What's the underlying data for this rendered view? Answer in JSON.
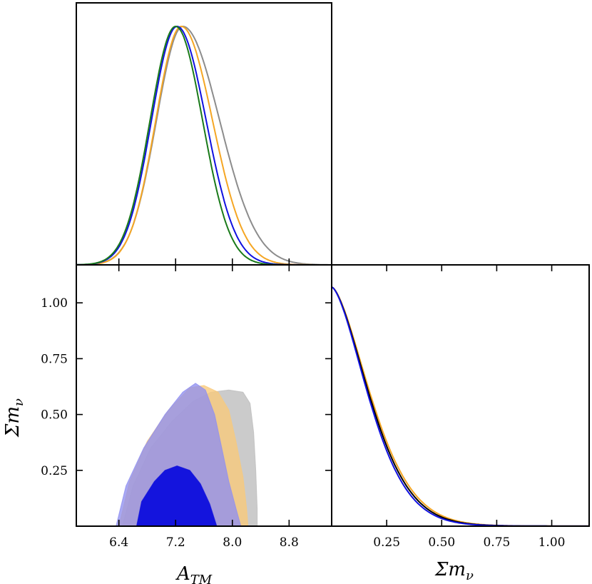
{
  "colors": {
    "gray": "#8c8c8c",
    "orange": "#f5a623",
    "blue": "#1010e0",
    "green": "#1a7a1a",
    "black": "#000000",
    "fill_gray": "#bdbdbd",
    "fill_orange": "#f9c97a",
    "fill_blue_light": "#8f8ff0",
    "fill_blue_dark": "#1414dd"
  },
  "chart_data": [
    {
      "type": "line",
      "panel": "A_TM marginal",
      "x_range": [
        5.8,
        9.4
      ],
      "x_ticks": [
        6.4,
        7.2,
        8.0,
        8.8
      ],
      "series": [
        {
          "color": "gray",
          "mean": 7.3,
          "sigma_left": 0.37,
          "sigma_right": 0.52
        },
        {
          "color": "orange",
          "mean": 7.28,
          "sigma_left": 0.36,
          "sigma_right": 0.44
        },
        {
          "color": "blue",
          "mean": 7.22,
          "sigma_left": 0.36,
          "sigma_right": 0.41
        },
        {
          "color": "green",
          "mean": 7.2,
          "sigma_left": 0.36,
          "sigma_right": 0.38
        }
      ]
    },
    {
      "type": "area",
      "panel": "A_TM vs Sum m_nu",
      "x_range": [
        5.8,
        9.4
      ],
      "y_range": [
        0.0,
        1.17
      ],
      "x_ticks": [
        6.4,
        7.2,
        8.0,
        8.8
      ],
      "y_ticks": [
        0.25,
        0.5,
        0.75,
        1.0
      ],
      "y_tick_labels": [
        "0.25",
        "0.50",
        "0.75",
        "1.00"
      ],
      "contours": [
        {
          "color": "fill_gray",
          "level": "95%",
          "points": [
            [
              6.45,
              0.0
            ],
            [
              6.6,
              0.18
            ],
            [
              6.85,
              0.35
            ],
            [
              7.15,
              0.47
            ],
            [
              7.45,
              0.56
            ],
            [
              7.7,
              0.6
            ],
            [
              7.95,
              0.61
            ],
            [
              8.15,
              0.6
            ],
            [
              8.25,
              0.55
            ],
            [
              8.3,
              0.42
            ],
            [
              8.33,
              0.25
            ],
            [
              8.35,
              0.08
            ],
            [
              8.35,
              0.0
            ]
          ]
        },
        {
          "color": "fill_orange",
          "level": "95%",
          "points": [
            [
              6.4,
              0.0
            ],
            [
              6.55,
              0.2
            ],
            [
              6.8,
              0.38
            ],
            [
              7.1,
              0.52
            ],
            [
              7.4,
              0.62
            ],
            [
              7.6,
              0.63
            ],
            [
              7.8,
              0.6
            ],
            [
              7.95,
              0.52
            ],
            [
              8.05,
              0.38
            ],
            [
              8.15,
              0.22
            ],
            [
              8.2,
              0.08
            ],
            [
              8.22,
              0.0
            ]
          ]
        },
        {
          "color": "fill_blue_light",
          "level": "95%",
          "points": [
            [
              6.36,
              0.0
            ],
            [
              6.5,
              0.18
            ],
            [
              6.75,
              0.35
            ],
            [
              7.05,
              0.5
            ],
            [
              7.3,
              0.6
            ],
            [
              7.48,
              0.64
            ],
            [
              7.62,
              0.61
            ],
            [
              7.75,
              0.5
            ],
            [
              7.85,
              0.35
            ],
            [
              7.95,
              0.2
            ],
            [
              8.05,
              0.08
            ],
            [
              8.12,
              0.0
            ]
          ]
        },
        {
          "color": "fill_blue_dark",
          "level": "68%",
          "points": [
            [
              6.65,
              0.0
            ],
            [
              6.72,
              0.11
            ],
            [
              6.9,
              0.2
            ],
            [
              7.05,
              0.25
            ],
            [
              7.22,
              0.27
            ],
            [
              7.4,
              0.25
            ],
            [
              7.55,
              0.19
            ],
            [
              7.68,
              0.1
            ],
            [
              7.78,
              0.0
            ]
          ]
        }
      ]
    },
    {
      "type": "line",
      "panel": "Sum m_nu marginal",
      "x_range": [
        0.0,
        1.17
      ],
      "x_ticks": [
        0.25,
        0.5,
        0.75,
        1.0
      ],
      "x_tick_labels": [
        "0.25",
        "0.50",
        "0.75",
        "1.00"
      ],
      "series": [
        {
          "color": "orange",
          "scale": 0.158
        },
        {
          "color": "black",
          "scale": 0.153
        },
        {
          "color": "blue",
          "scale": 0.148
        }
      ]
    }
  ],
  "labels": {
    "x_atm": "A",
    "x_atm_sub": "TM",
    "x_mnu": "Σm",
    "x_mnu_sub": "ν",
    "y_mnu": "Σm",
    "y_mnu_sub": "ν"
  }
}
